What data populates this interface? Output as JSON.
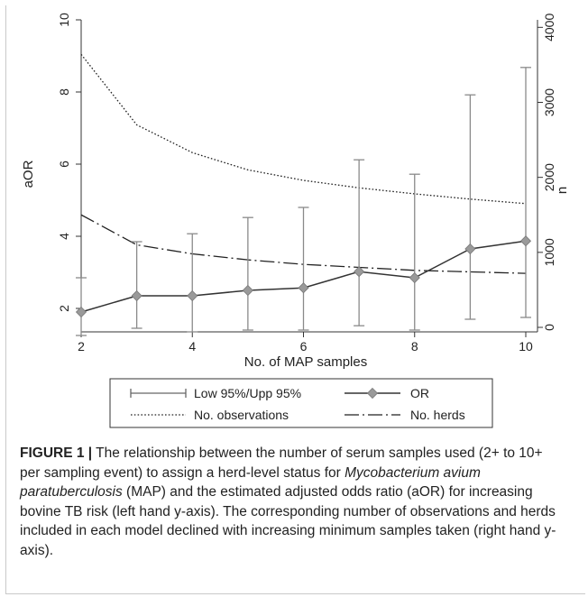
{
  "chart_data": {
    "type": "line",
    "xlabel": "No. of MAP samples",
    "ylabel_left": "aOR",
    "ylabel_right": "n",
    "x": [
      2,
      3,
      4,
      5,
      6,
      7,
      8,
      9,
      10
    ],
    "xlim": [
      2,
      10
    ],
    "x_ticks": [
      "2",
      "4",
      "6",
      "8",
      "10"
    ],
    "ylim_left": [
      1.5,
      10
    ],
    "ylim_right": [
      -60,
      4100
    ],
    "y_ticks_left": [
      "2",
      "4",
      "6",
      "8",
      "10"
    ],
    "y_ticks_right": [
      "0",
      "1000",
      "2000",
      "3000",
      "4000"
    ],
    "legend_position": "below-plot",
    "series": [
      {
        "name": "OR",
        "axis": "left",
        "values": [
          1.9,
          2.35,
          2.35,
          2.5,
          2.57,
          3.02,
          2.85,
          3.65,
          3.87
        ]
      },
      {
        "name": "Low 95%/Upp 95%",
        "axis": "left",
        "lower": [
          1.25,
          1.45,
          1.35,
          1.4,
          1.4,
          1.52,
          1.4,
          1.7,
          1.75
        ],
        "upper": [
          2.85,
          3.85,
          4.07,
          4.52,
          4.8,
          6.12,
          5.72,
          7.92,
          8.68
        ]
      },
      {
        "name": "No. observations",
        "axis": "right",
        "values": [
          3640,
          2700,
          2330,
          2100,
          1960,
          1860,
          1780,
          1710,
          1650
        ]
      },
      {
        "name": "No. herds",
        "axis": "right",
        "values": [
          1500,
          1100,
          980,
          900,
          840,
          800,
          760,
          740,
          720
        ]
      }
    ]
  },
  "caption": {
    "figure_label": "FIGURE 1 |",
    "text_1": " The relationship between the number of serum samples used (2+ to 10+ per sampling event) to assign a herd-level status for ",
    "italic": "Mycobacterium avium paratuberculosis",
    "text_2": " (MAP) and the estimated adjusted odds ratio (aOR) for increasing bovine TB risk (left hand y-axis). The corresponding number of observations and herds included in each model declined with increasing minimum samples taken (right hand y-axis)."
  }
}
